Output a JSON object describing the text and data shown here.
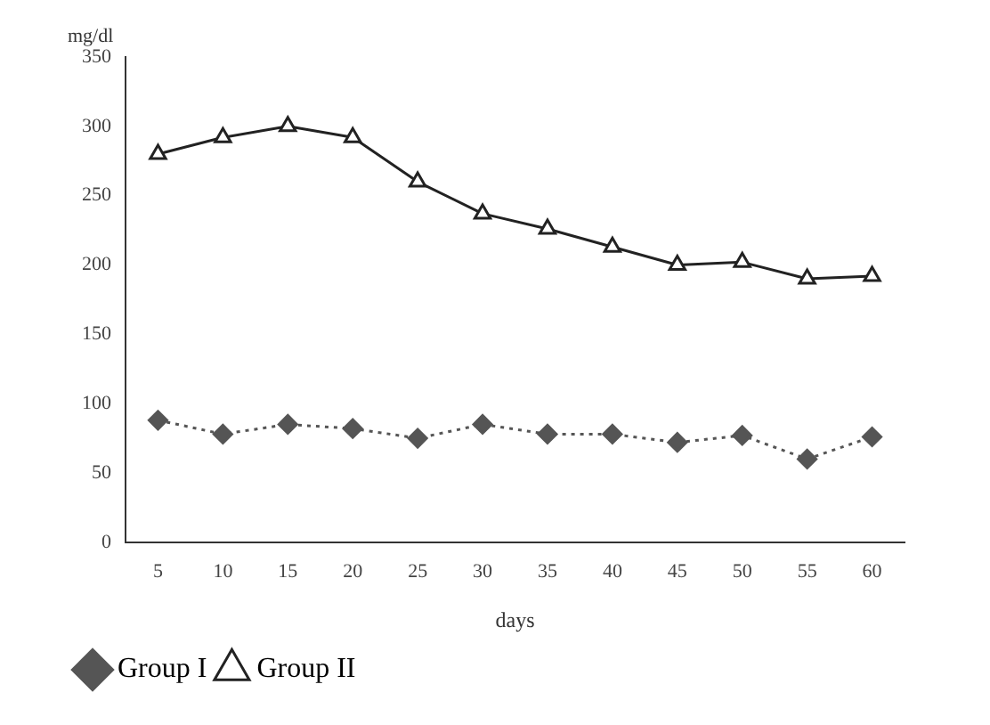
{
  "chart_data": {
    "type": "line",
    "xlabel": "days",
    "ylabel": "mg/dl",
    "categories": [
      "5",
      "10",
      "15",
      "20",
      "25",
      "30",
      "35",
      "40",
      "45",
      "50",
      "55",
      "60"
    ],
    "series": [
      {
        "name": "Group I",
        "color": "#555555",
        "marker": "diamond",
        "line_style": "dotted",
        "values": [
          88,
          78,
          85,
          82,
          75,
          85,
          78,
          78,
          72,
          77,
          60,
          76
        ]
      },
      {
        "name": "Group II",
        "color": "#222222",
        "marker": "triangle",
        "line_style": "solid",
        "values": [
          280,
          292,
          300,
          292,
          260,
          237,
          226,
          213,
          200,
          202,
          190,
          192
        ]
      }
    ],
    "ylim": [
      0,
      350
    ],
    "yticks": [
      0,
      50,
      100,
      150,
      200,
      250,
      300,
      350
    ],
    "grid": false,
    "legend": "bottom left"
  }
}
